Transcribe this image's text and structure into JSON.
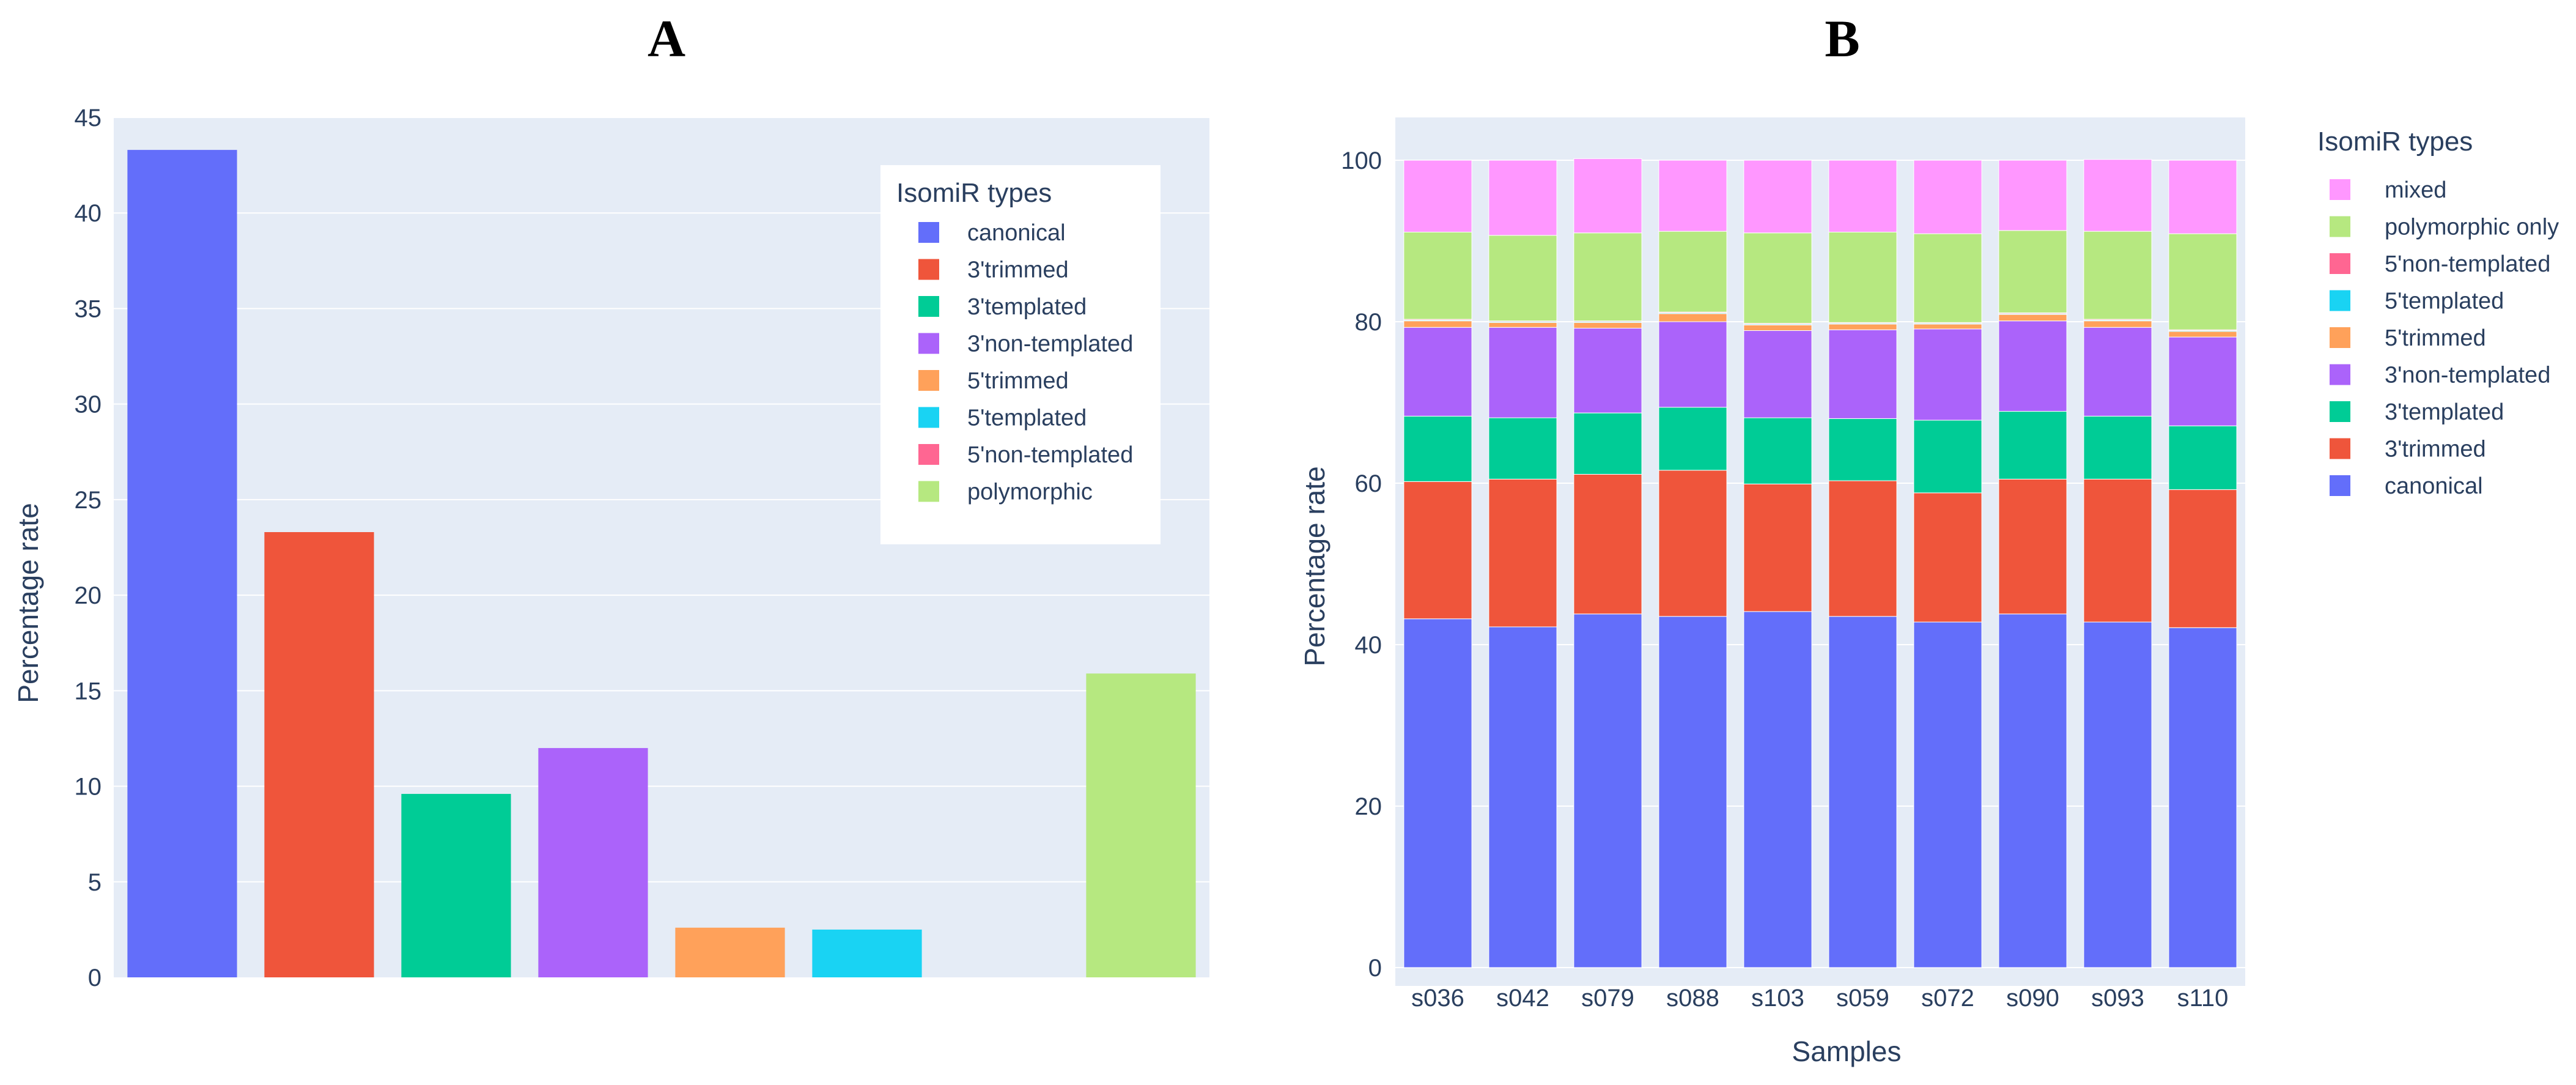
{
  "chart_data": [
    {
      "type": "bar",
      "panel_label": "A",
      "title": "",
      "xlabel": "",
      "ylabel": "Percentage rate",
      "ylim": [
        0,
        45
      ],
      "yticks": [
        0,
        5,
        10,
        15,
        20,
        25,
        30,
        35,
        40,
        45
      ],
      "grid": true,
      "categories": [
        "canonical",
        "3'trimmed",
        "3'templated",
        "3'non-templated",
        "5'trimmed",
        "5'templated",
        "5'non-templated",
        "polymorphic"
      ],
      "values": [
        43.3,
        23.3,
        9.6,
        12.0,
        2.6,
        2.5,
        0.0,
        15.9
      ],
      "colors": [
        "#636efa",
        "#ef553b",
        "#00cc96",
        "#ab63fa",
        "#ffa15a",
        "#19d3f3",
        "#ff6692",
        "#b6e880"
      ],
      "legend": {
        "title": "IsomiR types",
        "position": "top-right inside",
        "items": [
          "canonical",
          "3'trimmed",
          "3'templated",
          "3'non-templated",
          "5'trimmed",
          "5'templated",
          "5'non-templated",
          "polymorphic"
        ]
      }
    },
    {
      "type": "bar",
      "stacked": true,
      "panel_label": "B",
      "title": "",
      "xlabel": "Samples",
      "ylabel": "Percentage rate",
      "ylim": [
        0,
        100
      ],
      "yticks": [
        0,
        20,
        40,
        60,
        80,
        100
      ],
      "grid": true,
      "categories": [
        "s036",
        "s042",
        "s079",
        "s088",
        "s103",
        "s059",
        "s072",
        "s090",
        "s093",
        "s110"
      ],
      "series": [
        {
          "name": "canonical",
          "color": "#636efa",
          "values": [
            43.2,
            42.2,
            43.8,
            43.5,
            44.1,
            43.5,
            42.8,
            43.8,
            42.8,
            42.1
          ]
        },
        {
          "name": "3'trimmed",
          "color": "#ef553b",
          "values": [
            17.0,
            18.3,
            17.3,
            18.1,
            15.8,
            16.8,
            16.0,
            16.7,
            17.7,
            17.1
          ]
        },
        {
          "name": "3'templated",
          "color": "#00cc96",
          "values": [
            8.1,
            7.6,
            7.6,
            7.8,
            8.2,
            7.7,
            9.0,
            8.4,
            7.8,
            7.9
          ]
        },
        {
          "name": "3'non-templated",
          "color": "#ab63fa",
          "values": [
            11.0,
            11.2,
            10.5,
            10.6,
            10.8,
            11.0,
            11.3,
            11.2,
            11.0,
            11.0
          ]
        },
        {
          "name": "5'trimmed",
          "color": "#ffa15a",
          "values": [
            0.8,
            0.6,
            0.7,
            1.0,
            0.7,
            0.7,
            0.6,
            0.8,
            0.8,
            0.7
          ]
        },
        {
          "name": "5'templated",
          "color": "#19d3f3",
          "values": [
            0.1,
            0.1,
            0.1,
            0.1,
            0.1,
            0.1,
            0.1,
            0.1,
            0.1,
            0.1
          ]
        },
        {
          "name": "5'non-templated",
          "color": "#ff6692",
          "values": [
            0.1,
            0.1,
            0.1,
            0.1,
            0.1,
            0.1,
            0.1,
            0.1,
            0.1,
            0.1
          ]
        },
        {
          "name": "polymorphic only",
          "color": "#b6e880",
          "values": [
            10.8,
            10.6,
            10.9,
            10.0,
            11.2,
            11.2,
            11.0,
            10.2,
            10.9,
            11.9
          ]
        },
        {
          "name": "mixed",
          "color": "#ff97ff",
          "values": [
            8.9,
            9.3,
            9.2,
            8.8,
            9.0,
            8.9,
            9.1,
            8.7,
            8.9,
            9.1
          ]
        }
      ],
      "legend": {
        "title": "IsomiR types",
        "position": "right outside",
        "order": "reversed"
      }
    }
  ]
}
